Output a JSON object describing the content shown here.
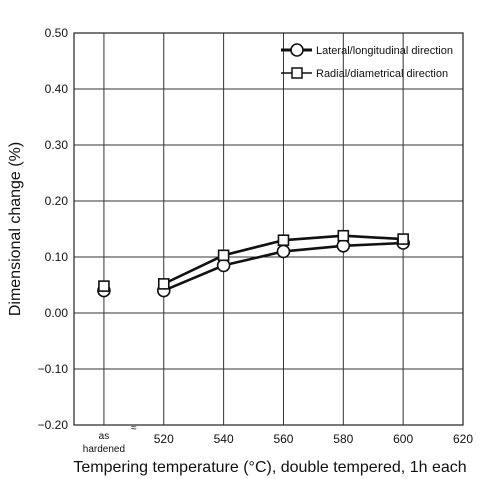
{
  "chart_data": {
    "type": "line",
    "xlabel": "Tempering temperature (°C), double tempered, 1h each",
    "ylabel": "Dimensional change (%)",
    "xlim": [
      490,
      620
    ],
    "ylim": [
      -0.2,
      0.5
    ],
    "x_ticks": [
      "520",
      "540",
      "560",
      "580",
      "600",
      "620"
    ],
    "y_ticks": [
      "0.50",
      "0.40",
      "0.30",
      "0.20",
      "0.10",
      "0.00",
      "−0.10",
      "−0.20"
    ],
    "as_hardened_label": [
      "as",
      "hardened"
    ],
    "axis_break": "≈",
    "grid": true,
    "legend_position": "top-right",
    "series": [
      {
        "name": "Lateral/longitudinal direction",
        "marker": "circle",
        "as_hardened": 0.04,
        "x": [
          520,
          540,
          560,
          580,
          600
        ],
        "y": [
          0.04,
          0.085,
          0.11,
          0.12,
          0.125
        ]
      },
      {
        "name": "Radial/diametrical direction",
        "marker": "square",
        "as_hardened": 0.048,
        "x": [
          520,
          540,
          560,
          580,
          600
        ],
        "y": [
          0.052,
          0.103,
          0.13,
          0.138,
          0.132
        ]
      }
    ]
  }
}
